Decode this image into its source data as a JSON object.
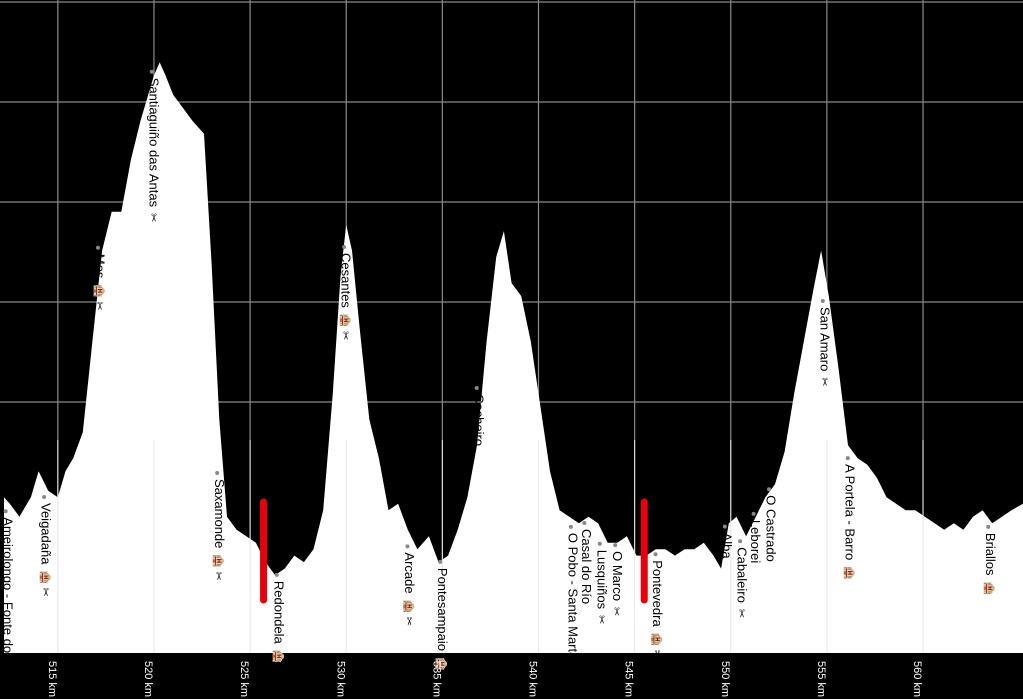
{
  "chart_data": {
    "type": "area",
    "xlabel": "",
    "ylabel": "",
    "xlim": [
      512.2,
      565.2
    ],
    "grid": true,
    "colors": {
      "background": "#000000",
      "fill": "#ffffff",
      "grid": "#8a8a8a",
      "marker": "#e8000b",
      "label": "#000000",
      "tick": "#ffffff"
    },
    "x_ticks": [
      {
        "km": 515,
        "label": "515 km"
      },
      {
        "km": 520,
        "label": "520 km"
      },
      {
        "km": 525,
        "label": "525 km"
      },
      {
        "km": 530,
        "label": "530 km"
      },
      {
        "km": 535,
        "label": "535 km"
      },
      {
        "km": 540,
        "label": "540 km"
      },
      {
        "km": 545,
        "label": "545 km"
      },
      {
        "km": 550,
        "label": "550 km"
      },
      {
        "km": 555,
        "label": "555 km"
      },
      {
        "km": 560,
        "label": "560 km"
      }
    ],
    "profile": [
      [
        512.2,
        0.24
      ],
      [
        512.5,
        0.23
      ],
      [
        513.0,
        0.21
      ],
      [
        513.6,
        0.24
      ],
      [
        514.0,
        0.28
      ],
      [
        514.5,
        0.25
      ],
      [
        515.0,
        0.24
      ],
      [
        515.4,
        0.28
      ],
      [
        515.8,
        0.3
      ],
      [
        516.3,
        0.34
      ],
      [
        516.8,
        0.48
      ],
      [
        517.3,
        0.62
      ],
      [
        517.8,
        0.68
      ],
      [
        518.3,
        0.68
      ],
      [
        518.8,
        0.76
      ],
      [
        519.3,
        0.82
      ],
      [
        519.7,
        0.86
      ],
      [
        520.0,
        0.89
      ],
      [
        520.3,
        0.91
      ],
      [
        520.6,
        0.89
      ],
      [
        521.0,
        0.86
      ],
      [
        521.5,
        0.84
      ],
      [
        522.0,
        0.82
      ],
      [
        522.6,
        0.8
      ],
      [
        523.0,
        0.6
      ],
      [
        523.4,
        0.36
      ],
      [
        523.8,
        0.21
      ],
      [
        524.3,
        0.19
      ],
      [
        524.8,
        0.18
      ],
      [
        525.3,
        0.17
      ],
      [
        525.8,
        0.14
      ],
      [
        526.3,
        0.12
      ],
      [
        526.8,
        0.13
      ],
      [
        527.3,
        0.15
      ],
      [
        527.8,
        0.14
      ],
      [
        528.3,
        0.16
      ],
      [
        528.8,
        0.22
      ],
      [
        529.3,
        0.4
      ],
      [
        529.7,
        0.58
      ],
      [
        530.0,
        0.66
      ],
      [
        530.3,
        0.62
      ],
      [
        530.7,
        0.5
      ],
      [
        531.2,
        0.36
      ],
      [
        531.7,
        0.3
      ],
      [
        532.2,
        0.22
      ],
      [
        532.7,
        0.23
      ],
      [
        533.2,
        0.19
      ],
      [
        533.7,
        0.16
      ],
      [
        534.3,
        0.18
      ],
      [
        534.8,
        0.14
      ],
      [
        535.3,
        0.15
      ],
      [
        535.8,
        0.19
      ],
      [
        536.3,
        0.24
      ],
      [
        536.8,
        0.32
      ],
      [
        537.3,
        0.48
      ],
      [
        537.8,
        0.61
      ],
      [
        538.2,
        0.65
      ],
      [
        538.6,
        0.57
      ],
      [
        539.1,
        0.55
      ],
      [
        539.6,
        0.48
      ],
      [
        540.1,
        0.38
      ],
      [
        540.6,
        0.28
      ],
      [
        541.1,
        0.22
      ],
      [
        541.6,
        0.21
      ],
      [
        542.1,
        0.2
      ],
      [
        542.6,
        0.21
      ],
      [
        543.1,
        0.2
      ],
      [
        543.6,
        0.17
      ],
      [
        544.1,
        0.17
      ],
      [
        544.6,
        0.18
      ],
      [
        545.1,
        0.15
      ],
      [
        545.6,
        0.15
      ],
      [
        546.1,
        0.16
      ],
      [
        546.6,
        0.16
      ],
      [
        547.1,
        0.15
      ],
      [
        547.6,
        0.16
      ],
      [
        548.1,
        0.16
      ],
      [
        548.6,
        0.17
      ],
      [
        549.1,
        0.15
      ],
      [
        549.5,
        0.13
      ],
      [
        549.9,
        0.2
      ],
      [
        550.3,
        0.21
      ],
      [
        550.8,
        0.18
      ],
      [
        551.3,
        0.21
      ],
      [
        551.8,
        0.24
      ],
      [
        552.3,
        0.26
      ],
      [
        552.8,
        0.31
      ],
      [
        553.3,
        0.4
      ],
      [
        553.8,
        0.48
      ],
      [
        554.3,
        0.56
      ],
      [
        554.7,
        0.62
      ],
      [
        555.1,
        0.55
      ],
      [
        555.6,
        0.44
      ],
      [
        556.1,
        0.32
      ],
      [
        556.6,
        0.3
      ],
      [
        557.1,
        0.29
      ],
      [
        557.6,
        0.27
      ],
      [
        558.1,
        0.24
      ],
      [
        558.6,
        0.23
      ],
      [
        559.1,
        0.22
      ],
      [
        559.6,
        0.22
      ],
      [
        560.1,
        0.21
      ],
      [
        560.6,
        0.2
      ],
      [
        561.1,
        0.19
      ],
      [
        561.6,
        0.2
      ],
      [
        562.1,
        0.19
      ],
      [
        562.6,
        0.21
      ],
      [
        563.1,
        0.22
      ],
      [
        563.6,
        0.2
      ],
      [
        564.1,
        0.21
      ],
      [
        564.6,
        0.22
      ],
      [
        565.2,
        0.23
      ]
    ],
    "places": [
      {
        "km": 512.6,
        "name": "Ameirolongo - Fonte do Chan",
        "icons": ""
      },
      {
        "km": 514.6,
        "name": "Veigadaña",
        "icons": "🏨 ✂"
      },
      {
        "km": 517.4,
        "name": "Mos",
        "icons": "🏨 ✂"
      },
      {
        "km": 520.2,
        "name": "Santiaguiño das Antas",
        "icons": "✂"
      },
      {
        "km": 523.6,
        "name": "Saxamonde",
        "icons": "🏨 ✂"
      },
      {
        "km": 526.7,
        "name": "Redondela",
        "icons": "🏨 ✂"
      },
      {
        "km": 530.2,
        "name": "Cesantes",
        "icons": "🏨 ✂"
      },
      {
        "km": 533.5,
        "name": "Arcade",
        "icons": "🏨 ✂"
      },
      {
        "km": 535.2,
        "name": "Pontesampaio",
        "icons": "🏨 ✂"
      },
      {
        "km": 537.1,
        "name": "Cacheiro",
        "icons": ""
      },
      {
        "km": 542.0,
        "name": "O Pobo - Santa Marta",
        "icons": ""
      },
      {
        "km": 542.7,
        "name": "Casal do Río",
        "icons": ""
      },
      {
        "km": 543.5,
        "name": "Lusquiños",
        "icons": "✂"
      },
      {
        "km": 544.3,
        "name": "O Marco",
        "icons": "✂"
      },
      {
        "km": 546.4,
        "name": "Pontevedra",
        "icons": "🏨 ✂"
      },
      {
        "km": 550.0,
        "name": "Alba",
        "icons": ""
      },
      {
        "km": 550.8,
        "name": "Cabaleiro",
        "icons": "✂"
      },
      {
        "km": 551.5,
        "name": "Leborei",
        "icons": ""
      },
      {
        "km": 552.3,
        "name": "O Castrado",
        "icons": ""
      },
      {
        "km": 555.1,
        "name": "San Amaro",
        "icons": "✂"
      },
      {
        "km": 556.4,
        "name": "A Portela - Barro",
        "icons": "🏨"
      },
      {
        "km": 563.7,
        "name": "Briallos",
        "icons": "🏨"
      }
    ],
    "markers": [
      {
        "km": 525.7
      },
      {
        "km": 545.5
      }
    ]
  }
}
